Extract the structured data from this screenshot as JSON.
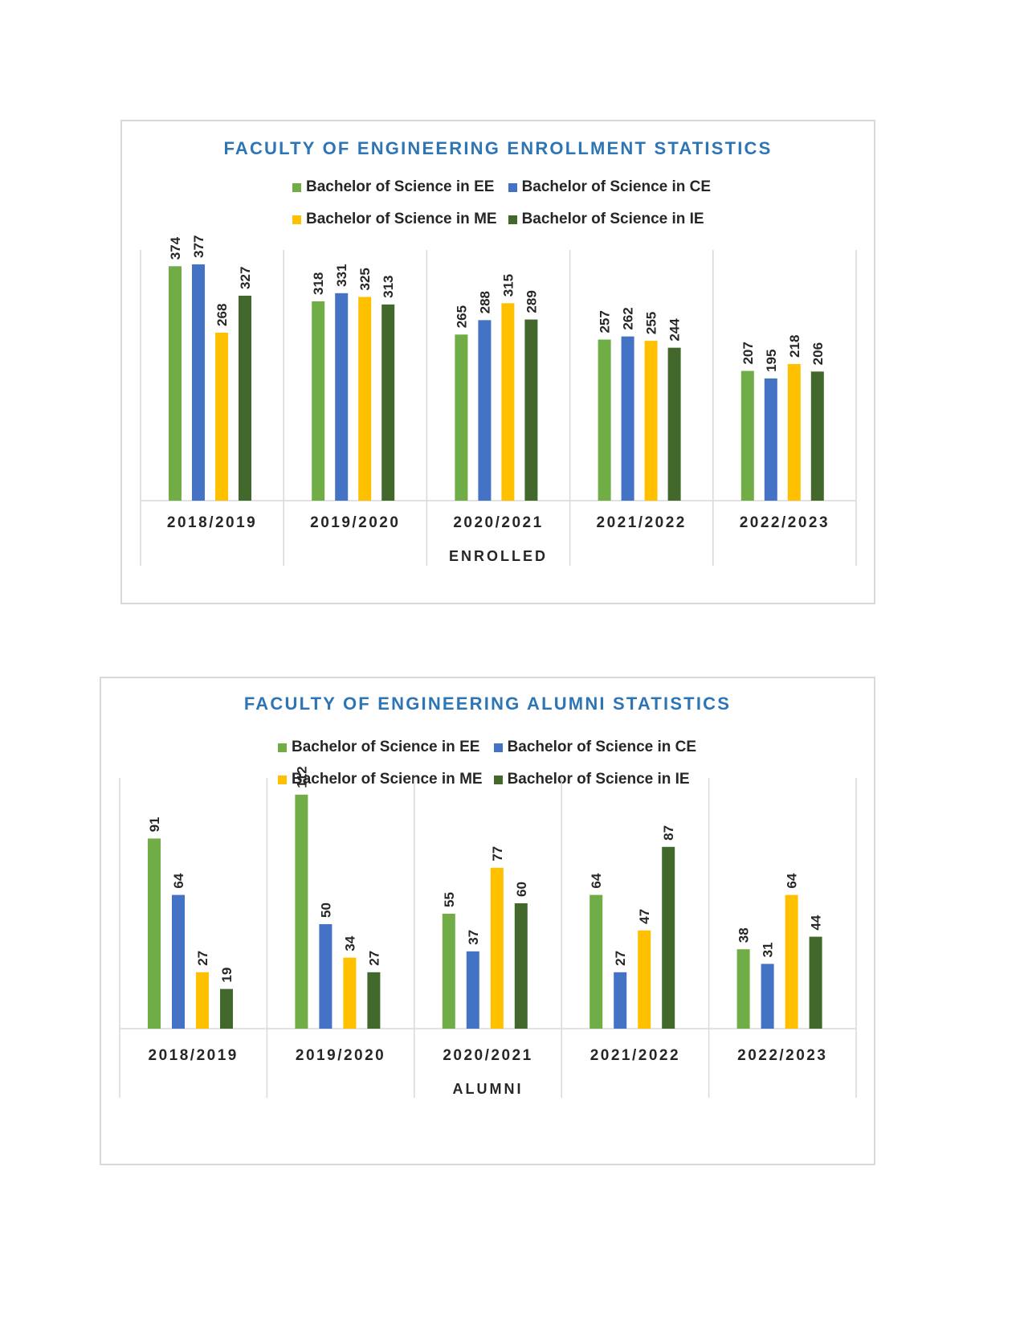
{
  "chart_data": [
    {
      "type": "bar",
      "title": "FACULTY OF ENGINEERING ENROLLMENT STATISTICS",
      "xlabel": "ENROLLED",
      "ylabel": "",
      "categories": [
        "2018/2019",
        "2019/2020",
        "2020/2021",
        "2021/2022",
        "2022/2023"
      ],
      "series": [
        {
          "name": "Bachelor of Science in EE",
          "color": "#70ad47",
          "values": [
            374,
            318,
            265,
            257,
            207
          ]
        },
        {
          "name": "Bachelor of Science in CE",
          "color": "#4472c4",
          "values": [
            377,
            331,
            288,
            262,
            195
          ]
        },
        {
          "name": "Bachelor of Science in ME",
          "color": "#ffc000",
          "values": [
            268,
            325,
            315,
            255,
            218
          ]
        },
        {
          "name": "Bachelor of Science in IE",
          "color": "#43682b",
          "values": [
            327,
            313,
            289,
            244,
            206
          ]
        }
      ],
      "ylim": [
        0,
        400
      ],
      "legend": "top",
      "grid": false,
      "data_labels": true
    },
    {
      "type": "bar",
      "title": "FACULTY OF ENGINEERING ALUMNI STATISTICS",
      "xlabel": "ALUMNI",
      "ylabel": "",
      "categories": [
        "2018/2019",
        "2019/2020",
        "2020/2021",
        "2021/2022",
        "2022/2023"
      ],
      "series": [
        {
          "name": "Bachelor of Science in EE",
          "color": "#70ad47",
          "values": [
            91,
            112,
            55,
            64,
            38
          ]
        },
        {
          "name": "Bachelor of Science in CE",
          "color": "#4472c4",
          "values": [
            64,
            50,
            37,
            27,
            31
          ]
        },
        {
          "name": "Bachelor of Science in ME",
          "color": "#ffc000",
          "values": [
            27,
            34,
            77,
            47,
            64
          ]
        },
        {
          "name": "Bachelor of Science in IE",
          "color": "#43682b",
          "values": [
            19,
            27,
            60,
            87,
            44
          ]
        }
      ],
      "ylim": [
        0,
        120
      ],
      "legend": "top",
      "grid": false,
      "data_labels": true
    }
  ]
}
